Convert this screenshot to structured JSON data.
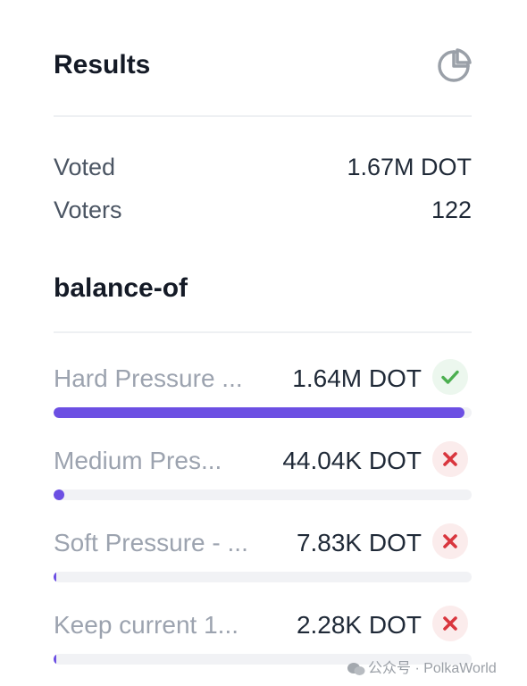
{
  "results": {
    "title": "Results",
    "icon": "pie-chart-icon"
  },
  "stats": [
    {
      "label": "Voted",
      "value": "1.67M DOT"
    },
    {
      "label": "Voters",
      "value": "122"
    }
  ],
  "section": {
    "title": "balance-of"
  },
  "options": [
    {
      "label": "Hard Pressure ...",
      "value": "1.64M DOT",
      "status": "passed",
      "status_icon": "check-icon",
      "share": 0.983
    },
    {
      "label": "Medium Pres...",
      "value": "44.04K DOT",
      "status": "rejected",
      "status_icon": "close-icon",
      "share": 0.026
    },
    {
      "label": "Soft Pressure - ...",
      "value": "7.83K DOT",
      "status": "rejected",
      "status_icon": "close-icon",
      "share": 0.005
    },
    {
      "label": "Keep current 1...",
      "value": "2.28K DOT",
      "status": "rejected",
      "status_icon": "close-icon",
      "share": 0.002
    }
  ],
  "colors": {
    "bar_fill": "#6c4fe3",
    "bar_track": "#f1f2f5",
    "check": "#4caf50",
    "cross": "#d9363e"
  },
  "watermark": {
    "text": "公众号 · PolkaWorld"
  }
}
